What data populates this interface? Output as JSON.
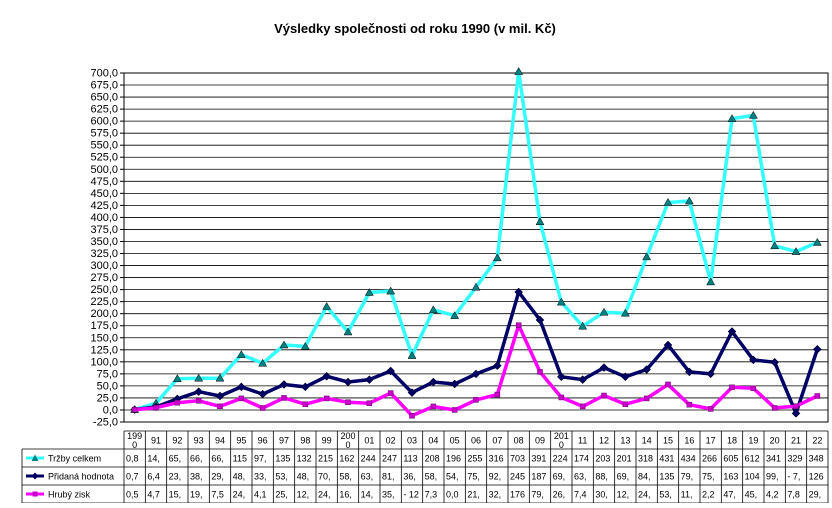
{
  "chart_data": {
    "type": "line",
    "title": "Výsledky společnosti od roku 1990 (v mil. Kč)",
    "xlabel": "",
    "ylabel": "",
    "ylim": [
      -25,
      700
    ],
    "ytick_step": 25,
    "ytick_labels": [
      "-25,0",
      "0,0",
      "25,0",
      "50,0",
      "75,0",
      "100,0",
      "125,0",
      "150,0",
      "175,0",
      "200,0",
      "225,0",
      "250,0",
      "275,0",
      "300,0",
      "325,0",
      "350,0",
      "375,0",
      "400,0",
      "425,0",
      "450,0",
      "475,0",
      "500,0",
      "525,0",
      "550,0",
      "575,0",
      "600,0",
      "625,0",
      "650,0",
      "675,0",
      "700,0"
    ],
    "grid": true,
    "legend_position": "bottom-left table",
    "categories": [
      "1990",
      "91",
      "92",
      "93",
      "94",
      "95",
      "96",
      "97",
      "98",
      "99",
      "2000",
      "01",
      "02",
      "03",
      "04",
      "05",
      "06",
      "07",
      "08",
      "09",
      "2010",
      "11",
      "12",
      "13",
      "14",
      "15",
      "16",
      "17",
      "18",
      "19",
      "20",
      "21",
      "22"
    ],
    "category_display": [
      "199\n0",
      "91",
      "92",
      "93",
      "94",
      "95",
      "96",
      "97",
      "98",
      "99",
      "200\n0",
      "01",
      "02",
      "03",
      "04",
      "05",
      "06",
      "07",
      "08",
      "09",
      "201\n0",
      "11",
      "12",
      "13",
      "14",
      "15",
      "16",
      "17",
      "18",
      "19",
      "20",
      "21",
      "22"
    ],
    "series": [
      {
        "name": "Tržby celkem",
        "color": "#33ffff",
        "marker": "triangle",
        "values": [
          0.8,
          14,
          65,
          66,
          66,
          115,
          97,
          135,
          132,
          215,
          162,
          244,
          247,
          113,
          208,
          196,
          255,
          316,
          703,
          391,
          224,
          174,
          203,
          201,
          318,
          431,
          434,
          266,
          605,
          612,
          341,
          329,
          348
        ],
        "table_cells": [
          "0,8",
          "14,",
          "65,",
          "66,",
          "66,",
          "115",
          "97,",
          "135",
          "132",
          "215",
          "162",
          "244",
          "247",
          "113",
          "208",
          "196",
          "255",
          "316",
          "703",
          "391",
          "224",
          "174",
          "203",
          "201",
          "318",
          "431",
          "434",
          "266",
          "605",
          "612",
          "341",
          "329",
          "348"
        ]
      },
      {
        "name": "Přidaná hodnota",
        "color": "#000066",
        "marker": "diamond",
        "values": [
          0.7,
          6.4,
          23,
          38,
          29,
          48,
          33,
          53,
          48,
          70,
          58,
          63,
          81,
          36,
          58,
          54,
          75,
          92,
          245,
          187,
          69,
          63,
          88,
          69,
          84,
          135,
          79,
          75,
          163,
          104,
          99,
          -7,
          126
        ],
        "table_cells": [
          "0,7",
          "6,4",
          "23,",
          "38,",
          "29,",
          "48,",
          "33,",
          "53,",
          "48,",
          "70,",
          "58,",
          "63,",
          "81,",
          "36,",
          "58,",
          "54,",
          "75,",
          "92,",
          "245",
          "187",
          "69,",
          "63,",
          "88,",
          "69,",
          "84,",
          "135",
          "79,",
          "75,",
          "163",
          "104",
          "99,",
          "- 7,",
          "126"
        ]
      },
      {
        "name": "Hrubý zisk",
        "color": "#ff00ff",
        "marker": "square",
        "values": [
          0.5,
          4.7,
          15,
          19,
          7.5,
          24,
          4.1,
          25,
          12,
          24,
          16,
          14,
          35,
          -12,
          7.3,
          0.0,
          21,
          32,
          176,
          79,
          26,
          7.4,
          30,
          12,
          24,
          53,
          11,
          2.2,
          47,
          45,
          4.2,
          7.8,
          29
        ],
        "table_cells": [
          "0,5",
          "4,7",
          "15,",
          "19,",
          "7,5",
          "24,",
          "4,1",
          "25,",
          "12,",
          "24,",
          "16,",
          "14,",
          "35,",
          "- 12",
          "7,3",
          "0,0",
          "21,",
          "32,",
          "176",
          "79,",
          "26,",
          "7,4",
          "30,",
          "12,",
          "24,",
          "53,",
          "11,",
          "2,2",
          "47,",
          "45,",
          "4,2",
          "7,8",
          "29,"
        ]
      }
    ]
  }
}
